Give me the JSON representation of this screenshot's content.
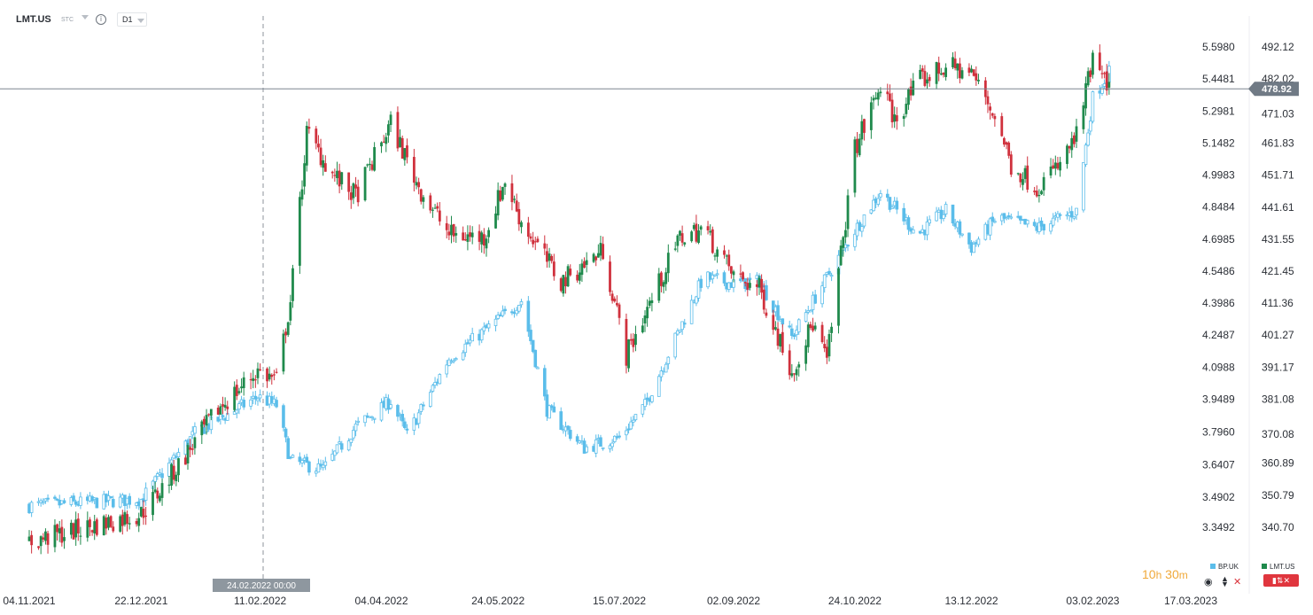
{
  "toolbar": {
    "symbol": "LMT.US",
    "symbol_type": "STC",
    "timeframe": "D1"
  },
  "timer": {
    "hours": "10",
    "h_unit": "h",
    "minutes": "30",
    "m_unit": "m"
  },
  "legend": {
    "series1": "BP.UK",
    "series2": "LMT.US"
  },
  "colors": {
    "up": "#1f8a4c",
    "down": "#d0313d",
    "compare": "#5bbdea",
    "price_label_bg": "#707a85",
    "crosshair_label_bg": "#8e979f"
  },
  "chart_data": {
    "type": "candlestick",
    "x_labels": [
      "04.11.2021",
      "22.12.2021",
      "11.02.2022",
      "04.04.2022",
      "24.05.2022",
      "15.07.2022",
      "02.09.2022",
      "24.10.2022",
      "13.12.2022",
      "03.02.2023",
      "17.03.2023"
    ],
    "crosshair_label": "24.02.2022 00:00",
    "right_axis": {
      "series": "LMT.US",
      "ticks": [
        492.12,
        482.02,
        471.03,
        461.83,
        451.71,
        441.61,
        431.55,
        421.45,
        411.36,
        401.27,
        391.17,
        381.08,
        370.08,
        360.89,
        350.79,
        340.7
      ],
      "tick_labels": [
        "492.12",
        "482.02",
        "471.03",
        "461.83",
        "451.71",
        "441.61",
        "431.55",
        "421.45",
        "411.36",
        "401.27",
        "391.17",
        "381.08",
        "370.08",
        "360.89",
        "350.79",
        "340.70"
      ],
      "current_price": 478.92,
      "current_price_label": "478.92"
    },
    "left_axis": {
      "series": "BP.UK",
      "ticks": [
        5.598,
        5.4481,
        5.2981,
        5.1482,
        4.9983,
        4.8484,
        4.6985,
        4.5486,
        4.3986,
        4.2487,
        4.0988,
        3.9489,
        3.796,
        3.6407,
        3.4902,
        3.3492
      ],
      "tick_labels": [
        "5.5980",
        "5.4481",
        "5.2981",
        "5.1482",
        "4.9983",
        "4.8484",
        "4.6985",
        "4.5486",
        "4.3986",
        "4.2487",
        "4.0988",
        "3.9489",
        "3.7960",
        "3.6407",
        "3.4902",
        "3.3492"
      ]
    },
    "series": [
      {
        "name": "LMT.US",
        "style": "candles",
        "anchors": [
          [
            "04.11.2021",
            336
          ],
          [
            "22.12.2021",
            345
          ],
          [
            "31.12.2021",
            353
          ],
          [
            "24.01.2022",
            378
          ],
          [
            "10.02.2022",
            390
          ],
          [
            "18.02.2022",
            387
          ],
          [
            "24.02.2022",
            412
          ],
          [
            "03.03.2022",
            465
          ],
          [
            "14.03.2022",
            452
          ],
          [
            "24.03.2022",
            445
          ],
          [
            "08.04.2022",
            468
          ],
          [
            "20.04.2022",
            448
          ],
          [
            "03.05.2022",
            433
          ],
          [
            "18.05.2022",
            432
          ],
          [
            "27.05.2022",
            450
          ],
          [
            "03.06.2022",
            437
          ],
          [
            "20.06.2022",
            418
          ],
          [
            "08.07.2022",
            428
          ],
          [
            "18.07.2022",
            395
          ],
          [
            "26.07.2022",
            408
          ],
          [
            "10.08.2022",
            432
          ],
          [
            "20.08.2022",
            435
          ],
          [
            "02.09.2022",
            420
          ],
          [
            "13.09.2022",
            416
          ],
          [
            "27.09.2022",
            390
          ],
          [
            "06.10.2022",
            405
          ],
          [
            "12.10.2022",
            393
          ],
          [
            "24.10.2022",
            460
          ],
          [
            "04.11.2022",
            480
          ],
          [
            "10.11.2022",
            469
          ],
          [
            "20.11.2022",
            481
          ],
          [
            "02.12.2022",
            486
          ],
          [
            "13.12.2022",
            484
          ],
          [
            "24.12.2022",
            469
          ],
          [
            "30.12.2022",
            455
          ],
          [
            "10.01.2023",
            448
          ],
          [
            "20.01.2023",
            455
          ],
          [
            "27.01.2023",
            464
          ],
          [
            "03.02.2023",
            488
          ],
          [
            "10.02.2023",
            478
          ]
        ]
      },
      {
        "name": "BP.UK",
        "style": "candles",
        "anchors": [
          [
            "04.11.2021",
            3.45
          ],
          [
            "22.12.2021",
            3.48
          ],
          [
            "14.01.2022",
            3.79
          ],
          [
            "10.02.2022",
            3.96
          ],
          [
            "18.02.2022",
            3.92
          ],
          [
            "24.02.2022",
            3.66
          ],
          [
            "10.03.2022",
            3.62
          ],
          [
            "24.03.2022",
            3.82
          ],
          [
            "08.04.2022",
            3.94
          ],
          [
            "15.04.2022",
            3.78
          ],
          [
            "03.05.2022",
            4.14
          ],
          [
            "24.05.2022",
            4.32
          ],
          [
            "03.06.2022",
            4.41
          ],
          [
            "14.06.2022",
            3.9
          ],
          [
            "30.06.2022",
            3.72
          ],
          [
            "15.07.2022",
            3.77
          ],
          [
            "26.07.2022",
            3.92
          ],
          [
            "20.08.2022",
            4.52
          ],
          [
            "02.09.2022",
            4.49
          ],
          [
            "13.09.2022",
            4.5
          ],
          [
            "27.09.2022",
            4.24
          ],
          [
            "12.10.2022",
            4.52
          ],
          [
            "24.10.2022",
            4.74
          ],
          [
            "04.11.2022",
            4.92
          ],
          [
            "20.11.2022",
            4.72
          ],
          [
            "02.12.2022",
            4.83
          ],
          [
            "13.12.2022",
            4.66
          ],
          [
            "24.12.2022",
            4.8
          ],
          [
            "10.01.2023",
            4.75
          ],
          [
            "27.01.2023",
            4.83
          ],
          [
            "03.02.2023",
            5.36
          ],
          [
            "10.02.2023",
            5.48
          ]
        ]
      }
    ],
    "grid": false,
    "legend_position": "bottom-right"
  }
}
